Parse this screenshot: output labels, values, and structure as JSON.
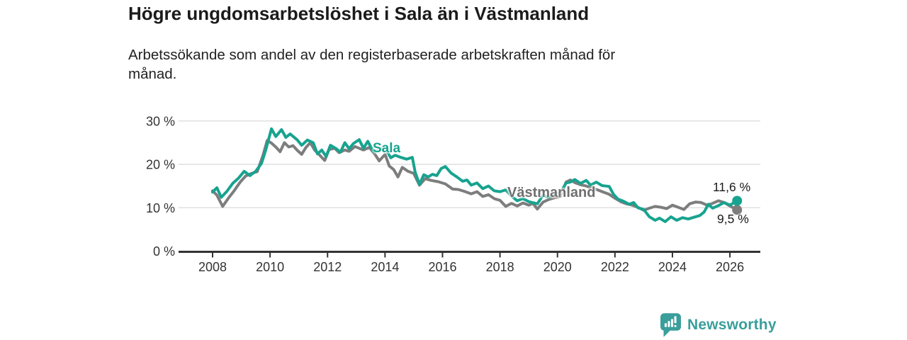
{
  "header": {
    "title": "Högre ungdomsarbetslöshet i Sala än i Västmanland",
    "subtitle_lines": [
      "Arbetssökande som andel av den registerbaserade arbetskraften månad för",
      "månad."
    ]
  },
  "colors": {
    "sala": "#17a38f",
    "vastmanland": "#7d7d7d",
    "vastmanland_label": "#6f6f6f",
    "grid": "#e0e0e0",
    "axis": "#333333",
    "brand_teal": "#3a9e9b"
  },
  "labels": {
    "sala": "Sala",
    "vastmanland": "Västmanland",
    "sala_end_value": "11,6 %",
    "vastmanland_end_value": "9,5 %"
  },
  "footer": {
    "brand": "Newsworthy"
  },
  "chart_data": {
    "type": "line",
    "title": "Högre ungdomsarbetslöshet i Sala än i Västmanland",
    "subtitle": "Arbetssökande som andel av den registerbaserade arbetskraften månad för månad.",
    "unit": "%",
    "grid": true,
    "xlim": [
      2007.7,
      2027.2
    ],
    "ylim": [
      0,
      32
    ],
    "x_ticks": [
      2008,
      2010,
      2012,
      2014,
      2016,
      2018,
      2020,
      2022,
      2024,
      2026
    ],
    "y_ticks": [
      0,
      10,
      20,
      30
    ],
    "y_tick_labels": [
      "0 %",
      "10 %",
      "20 %",
      "30 %"
    ],
    "legend_position": "inline-labels",
    "series": [
      {
        "name": "Västmanland",
        "color": "#7d7d7d",
        "end_label": "9,5 %",
        "end_value": 9.5,
        "points": [
          [
            2008.0,
            13.9
          ],
          [
            2008.15,
            12.9
          ],
          [
            2008.35,
            10.3
          ],
          [
            2008.55,
            12.2
          ],
          [
            2008.75,
            13.9
          ],
          [
            2008.95,
            15.8
          ],
          [
            2009.15,
            17.3
          ],
          [
            2009.35,
            17.9
          ],
          [
            2009.55,
            18.3
          ],
          [
            2009.75,
            22.0
          ],
          [
            2009.9,
            25.5
          ],
          [
            2010.05,
            24.9
          ],
          [
            2010.2,
            24.0
          ],
          [
            2010.35,
            22.9
          ],
          [
            2010.5,
            25.0
          ],
          [
            2010.65,
            24.0
          ],
          [
            2010.8,
            24.3
          ],
          [
            2010.95,
            23.2
          ],
          [
            2011.1,
            22.3
          ],
          [
            2011.25,
            23.9
          ],
          [
            2011.4,
            25.0
          ],
          [
            2011.55,
            23.3
          ],
          [
            2011.7,
            22.3
          ],
          [
            2011.9,
            20.9
          ],
          [
            2012.05,
            23.4
          ],
          [
            2012.25,
            23.7
          ],
          [
            2012.4,
            22.7
          ],
          [
            2012.6,
            23.3
          ],
          [
            2012.75,
            23.0
          ],
          [
            2012.95,
            24.1
          ],
          [
            2013.1,
            23.7
          ],
          [
            2013.25,
            23.3
          ],
          [
            2013.45,
            23.9
          ],
          [
            2013.65,
            22.3
          ],
          [
            2013.8,
            20.8
          ],
          [
            2014.0,
            22.3
          ],
          [
            2014.15,
            19.6
          ],
          [
            2014.3,
            18.8
          ],
          [
            2014.45,
            17.1
          ],
          [
            2014.6,
            19.3
          ],
          [
            2014.8,
            18.4
          ],
          [
            2015.0,
            17.9
          ],
          [
            2015.2,
            15.2
          ],
          [
            2015.4,
            16.7
          ],
          [
            2015.6,
            16.3
          ],
          [
            2015.85,
            16.0
          ],
          [
            2016.1,
            15.5
          ],
          [
            2016.35,
            14.3
          ],
          [
            2016.55,
            14.2
          ],
          [
            2016.75,
            13.8
          ],
          [
            2017.0,
            13.2
          ],
          [
            2017.2,
            13.7
          ],
          [
            2017.4,
            12.6
          ],
          [
            2017.6,
            13.0
          ],
          [
            2017.8,
            12.1
          ],
          [
            2018.0,
            11.7
          ],
          [
            2018.2,
            10.3
          ],
          [
            2018.4,
            11.0
          ],
          [
            2018.6,
            10.4
          ],
          [
            2018.8,
            11.1
          ],
          [
            2019.0,
            10.6
          ],
          [
            2019.15,
            11.0
          ],
          [
            2019.3,
            9.7
          ],
          [
            2019.5,
            11.3
          ],
          [
            2019.7,
            11.9
          ],
          [
            2019.9,
            12.3
          ],
          [
            2020.1,
            12.6
          ],
          [
            2020.3,
            15.9
          ],
          [
            2020.45,
            16.4
          ],
          [
            2020.6,
            15.8
          ],
          [
            2020.8,
            15.3
          ],
          [
            2021.0,
            15.0
          ],
          [
            2021.2,
            14.5
          ],
          [
            2021.4,
            14.1
          ],
          [
            2021.6,
            13.6
          ],
          [
            2021.8,
            13.1
          ],
          [
            2022.0,
            12.2
          ],
          [
            2022.2,
            11.4
          ],
          [
            2022.4,
            10.9
          ],
          [
            2022.6,
            10.6
          ],
          [
            2022.8,
            10.1
          ],
          [
            2023.0,
            9.4
          ],
          [
            2023.2,
            9.9
          ],
          [
            2023.4,
            10.3
          ],
          [
            2023.6,
            10.1
          ],
          [
            2023.8,
            9.8
          ],
          [
            2024.0,
            10.6
          ],
          [
            2024.2,
            10.1
          ],
          [
            2024.4,
            9.6
          ],
          [
            2024.6,
            10.9
          ],
          [
            2024.8,
            11.3
          ],
          [
            2025.0,
            11.2
          ],
          [
            2025.2,
            10.6
          ],
          [
            2025.4,
            11.0
          ],
          [
            2025.6,
            11.6
          ],
          [
            2025.8,
            11.2
          ],
          [
            2026.0,
            10.4
          ],
          [
            2026.25,
            9.5
          ]
        ]
      },
      {
        "name": "Sala",
        "color": "#17a38f",
        "end_label": "11,6 %",
        "end_value": 11.6,
        "points": [
          [
            2008.0,
            13.6
          ],
          [
            2008.15,
            14.6
          ],
          [
            2008.3,
            12.4
          ],
          [
            2008.5,
            13.8
          ],
          [
            2008.7,
            15.6
          ],
          [
            2008.9,
            16.8
          ],
          [
            2009.1,
            18.4
          ],
          [
            2009.3,
            17.4
          ],
          [
            2009.5,
            18.4
          ],
          [
            2009.7,
            20.2
          ],
          [
            2009.85,
            23.3
          ],
          [
            2010.05,
            28.2
          ],
          [
            2010.2,
            26.4
          ],
          [
            2010.4,
            28.0
          ],
          [
            2010.55,
            26.2
          ],
          [
            2010.7,
            27.0
          ],
          [
            2010.95,
            25.6
          ],
          [
            2011.1,
            24.4
          ],
          [
            2011.3,
            25.6
          ],
          [
            2011.5,
            25.0
          ],
          [
            2011.65,
            22.4
          ],
          [
            2011.8,
            23.3
          ],
          [
            2011.95,
            21.8
          ],
          [
            2012.1,
            24.4
          ],
          [
            2012.3,
            23.6
          ],
          [
            2012.45,
            22.8
          ],
          [
            2012.6,
            25.0
          ],
          [
            2012.75,
            23.6
          ],
          [
            2012.9,
            24.8
          ],
          [
            2013.1,
            25.7
          ],
          [
            2013.25,
            23.7
          ],
          [
            2013.4,
            25.3
          ],
          [
            2013.6,
            22.9
          ],
          [
            2013.8,
            23.4
          ],
          [
            2014.0,
            23.8
          ],
          [
            2014.2,
            21.5
          ],
          [
            2014.35,
            22.1
          ],
          [
            2014.55,
            21.6
          ],
          [
            2014.75,
            21.2
          ],
          [
            2014.95,
            21.6
          ],
          [
            2015.05,
            18.2
          ],
          [
            2015.2,
            15.4
          ],
          [
            2015.35,
            17.6
          ],
          [
            2015.5,
            17.1
          ],
          [
            2015.65,
            17.7
          ],
          [
            2015.8,
            17.4
          ],
          [
            2015.95,
            19.0
          ],
          [
            2016.1,
            19.5
          ],
          [
            2016.3,
            18.0
          ],
          [
            2016.5,
            17.1
          ],
          [
            2016.7,
            16.1
          ],
          [
            2016.85,
            16.4
          ],
          [
            2017.0,
            15.2
          ],
          [
            2017.2,
            15.7
          ],
          [
            2017.4,
            14.4
          ],
          [
            2017.6,
            15.0
          ],
          [
            2017.8,
            13.9
          ],
          [
            2018.0,
            13.7
          ],
          [
            2018.2,
            14.1
          ],
          [
            2018.4,
            12.7
          ],
          [
            2018.6,
            11.6
          ],
          [
            2018.8,
            12.1
          ],
          [
            2019.0,
            11.4
          ],
          [
            2019.3,
            10.9
          ],
          [
            2019.5,
            12.9
          ],
          [
            2019.7,
            12.4
          ],
          [
            2019.9,
            13.2
          ],
          [
            2020.1,
            13.4
          ],
          [
            2020.3,
            15.7
          ],
          [
            2020.45,
            15.9
          ],
          [
            2020.6,
            16.5
          ],
          [
            2020.8,
            15.6
          ],
          [
            2021.0,
            16.3
          ],
          [
            2021.15,
            15.2
          ],
          [
            2021.35,
            15.9
          ],
          [
            2021.55,
            15.1
          ],
          [
            2021.8,
            14.9
          ],
          [
            2021.95,
            13.1
          ],
          [
            2022.1,
            12.0
          ],
          [
            2022.3,
            11.5
          ],
          [
            2022.5,
            10.8
          ],
          [
            2022.65,
            11.2
          ],
          [
            2022.8,
            10.0
          ],
          [
            2023.0,
            9.6
          ],
          [
            2023.2,
            7.9
          ],
          [
            2023.4,
            7.1
          ],
          [
            2023.55,
            7.6
          ],
          [
            2023.75,
            6.8
          ],
          [
            2023.95,
            7.9
          ],
          [
            2024.15,
            7.1
          ],
          [
            2024.35,
            7.7
          ],
          [
            2024.55,
            7.4
          ],
          [
            2024.75,
            7.8
          ],
          [
            2024.95,
            8.2
          ],
          [
            2025.1,
            9.0
          ],
          [
            2025.25,
            10.8
          ],
          [
            2025.4,
            9.9
          ],
          [
            2025.6,
            10.5
          ],
          [
            2025.8,
            11.2
          ],
          [
            2026.0,
            10.6
          ],
          [
            2026.25,
            11.6
          ]
        ]
      }
    ]
  }
}
